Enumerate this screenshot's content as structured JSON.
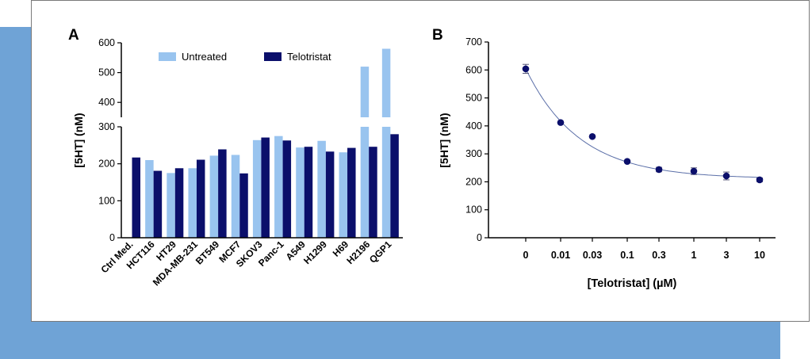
{
  "colors": {
    "background_band": "#6fa3d6",
    "untreated": "#99c4ef",
    "telotristat": "#0b0f6b",
    "curve": "#5b6fa8",
    "axis": "#000000"
  },
  "chart_data": [
    {
      "panel_label": "A",
      "type": "bar",
      "ylabel": "[5HT] (nM)",
      "ylim_lower": [
        0,
        300
      ],
      "ylim_upper": [
        350,
        600
      ],
      "yticks_lower": [
        "0",
        "100",
        "200",
        "300"
      ],
      "yticks_upper": [
        "400",
        "500",
        "600"
      ],
      "legend_position": "top",
      "categories": [
        "Ctrl Med.",
        "HCT116",
        "HT29",
        "MDA-MB-231",
        "BT549",
        "MCF7",
        "SKOV3",
        "Panc-1",
        "A549",
        "H1299",
        "H69",
        "H2196",
        "QGP1"
      ],
      "series": [
        {
          "name": "Untreated",
          "values": [
            null,
            210,
            175,
            188,
            222,
            224,
            264,
            275,
            244,
            262,
            231,
            520,
            580
          ]
        },
        {
          "name": "Telotristat",
          "values": [
            217,
            181,
            188,
            211,
            239,
            174,
            271,
            263,
            246,
            233,
            243,
            246,
            280
          ]
        }
      ]
    },
    {
      "panel_label": "B",
      "type": "scatter",
      "xlabel": "[Telotristat] (µM)",
      "ylabel": "[5HT] (nM)",
      "ylim": [
        0,
        700
      ],
      "yticks": [
        "0",
        "100",
        "200",
        "300",
        "400",
        "500",
        "600",
        "700"
      ],
      "categories": [
        "0",
        "0.01",
        "0.03",
        "0.1",
        "0.3",
        "1",
        "3",
        "10"
      ],
      "values": [
        604,
        412,
        362,
        273,
        244,
        238,
        221,
        207
      ],
      "errors": [
        16,
        0,
        0,
        0,
        8,
        12,
        14,
        7
      ],
      "fit_curve": "exponential decay"
    }
  ]
}
